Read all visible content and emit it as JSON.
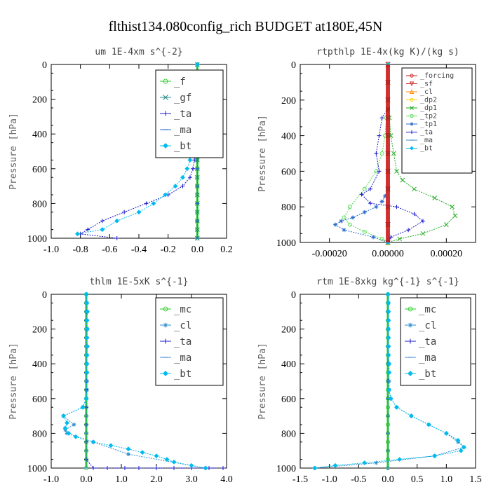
{
  "figure": {
    "title": "flthist134.080config_rich  BUDGET at180E,45N"
  },
  "chart_data": [
    {
      "type": "line",
      "title": "um  1E-4xm s^{-2}",
      "ylabel": "Pressure [hPa]",
      "xlim": [
        -1.0,
        0.2
      ],
      "ylim": [
        1000,
        0
      ],
      "xticks": [
        "-1.0",
        "-0.8",
        "-0.6",
        "-0.4",
        "-0.2",
        "0.0",
        "0.2"
      ],
      "yticks": [
        "0",
        "200",
        "400",
        "600",
        "800",
        "1000"
      ],
      "legend_position": "top-right",
      "series": [
        {
          "name": "_f",
          "color": "#22cc22",
          "marker": "circle",
          "x": [
            0,
            0,
            0,
            0,
            0,
            0,
            0,
            0,
            0,
            0,
            0,
            0,
            0,
            0,
            0,
            0,
            0,
            0,
            0,
            0,
            0
          ],
          "y": [
            0,
            50,
            100,
            150,
            200,
            250,
            300,
            350,
            400,
            450,
            500,
            550,
            600,
            650,
            700,
            750,
            800,
            850,
            900,
            950,
            1000
          ]
        },
        {
          "name": "_gf",
          "color": "#2a8a8a",
          "marker": "x",
          "x": [
            0,
            0,
            0,
            0,
            0,
            0,
            0,
            0,
            0,
            0,
            0,
            0,
            0,
            0,
            0,
            0,
            0,
            0,
            0,
            0,
            0
          ],
          "y": [
            0,
            50,
            100,
            150,
            200,
            250,
            300,
            350,
            400,
            450,
            500,
            550,
            600,
            650,
            700,
            750,
            800,
            850,
            900,
            950,
            1000
          ]
        },
        {
          "name": "_ta",
          "color": "#1a1acc",
          "marker": "plus",
          "x": [
            0,
            0,
            0,
            0,
            -0.01,
            -0.01,
            -0.01,
            -0.01,
            0,
            -0.01,
            -0.02,
            -0.03,
            -0.05,
            -0.1,
            -0.2,
            -0.35,
            -0.5,
            -0.65,
            -0.75,
            -0.8,
            -0.55
          ],
          "y": [
            0,
            100,
            200,
            220,
            250,
            300,
            350,
            400,
            450,
            500,
            550,
            600,
            650,
            700,
            750,
            800,
            850,
            900,
            950,
            975,
            1000
          ]
        },
        {
          "name": "_ma",
          "color": "#2a6acc",
          "marker": "dash",
          "x": [
            0,
            0,
            0,
            0,
            0,
            0,
            0,
            0,
            0,
            0,
            0
          ],
          "y": [
            0,
            100,
            200,
            300,
            400,
            500,
            600,
            700,
            800,
            900,
            1000
          ]
        },
        {
          "name": "_bt",
          "color": "#00bbee",
          "marker": "diamond",
          "x": [
            0,
            0,
            -0.01,
            -0.01,
            -0.01,
            -0.01,
            -0.01,
            -0.01,
            -0.02,
            -0.03,
            -0.04,
            -0.05,
            -0.07,
            -0.1,
            -0.15,
            -0.22,
            -0.3,
            -0.4,
            -0.55,
            -0.65,
            -0.82
          ],
          "y": [
            0,
            50,
            100,
            150,
            200,
            250,
            300,
            350,
            400,
            450,
            500,
            550,
            600,
            650,
            700,
            750,
            800,
            850,
            900,
            950,
            975
          ]
        }
      ]
    },
    {
      "type": "line",
      "title": "rtpthlp  1E-4x(kg K)/(kg s)",
      "ylabel": "Pressure [hPa]",
      "xlim": [
        -0.0003,
        0.0003
      ],
      "ylim": [
        1000,
        0
      ],
      "xticks": [
        "-0.00020",
        "0.00000",
        "0.00020"
      ],
      "yticks": [
        "0",
        "200",
        "400",
        "600",
        "800",
        "1000"
      ],
      "legend_position": "top-right",
      "series": [
        {
          "name": "_forcing",
          "color": "#cc2222",
          "marker": "circle",
          "x": [
            0,
            0,
            0,
            0,
            0,
            0,
            0,
            0,
            0,
            0,
            0
          ],
          "y": [
            0,
            100,
            200,
            300,
            400,
            500,
            600,
            700,
            800,
            900,
            1000
          ]
        },
        {
          "name": "_sf",
          "color": "#cc2222",
          "marker": "triangle-down",
          "x": [
            0,
            0,
            0,
            0,
            0,
            0,
            0,
            0,
            0,
            0,
            0
          ],
          "y": [
            0,
            100,
            200,
            300,
            400,
            500,
            600,
            700,
            800,
            900,
            1000
          ]
        },
        {
          "name": "_cl",
          "color": "#ff8800",
          "marker": "triangle-up",
          "x": [
            0,
            0,
            0,
            0,
            0,
            0,
            0,
            0,
            0,
            0,
            0
          ],
          "y": [
            0,
            100,
            200,
            300,
            400,
            500,
            600,
            700,
            800,
            900,
            1000
          ]
        },
        {
          "name": "_dp2",
          "color": "#ffcc00",
          "marker": "circle",
          "x": [
            0,
            0,
            0,
            0,
            0,
            0,
            0,
            0,
            0,
            0,
            0
          ],
          "y": [
            0,
            100,
            200,
            300,
            400,
            500,
            600,
            700,
            800,
            900,
            1000
          ]
        },
        {
          "name": "_dp1",
          "color": "#22aa22",
          "marker": "x",
          "x": [
            0,
            5e-06,
            1e-05,
            2e-05,
            3e-05,
            5e-05,
            9e-05,
            0.00016,
            0.00022,
            0.00023,
            0.0002,
            0.00012,
            4e-05,
            0.0
          ],
          "y": [
            250,
            300,
            400,
            500,
            600,
            650,
            700,
            750,
            800,
            850,
            900,
            950,
            980,
            1000
          ]
        },
        {
          "name": "_tp2",
          "color": "#55dd55",
          "marker": "circle",
          "x": [
            0,
            -5e-06,
            -1e-05,
            -2e-05,
            -4e-05,
            -8e-05,
            -0.00013,
            -0.00015,
            -0.00013,
            -8e-05,
            -2e-05,
            0
          ],
          "y": [
            250,
            300,
            400,
            500,
            600,
            700,
            800,
            860,
            900,
            940,
            980,
            1000
          ]
        },
        {
          "name": "_tp1",
          "color": "#2a6acc",
          "marker": "asterisk",
          "x": [
            0,
            -1e-05,
            -2e-05,
            -4e-05,
            -8e-05,
            -0.00012,
            -0.00016,
            -0.00018,
            -0.00015,
            -5e-05,
            0
          ],
          "y": [
            700,
            740,
            770,
            800,
            830,
            860,
            880,
            900,
            930,
            970,
            1000
          ]
        },
        {
          "name": "_ta",
          "color": "#1a1acc",
          "marker": "plus",
          "x": [
            0,
            -2e-05,
            -3e-05,
            -4e-05,
            -3e-05,
            -6e-05,
            -9e-05,
            -6e-05,
            3e-05,
            9e-05,
            0.00012,
            7e-05,
            1e-05,
            0
          ],
          "y": [
            250,
            300,
            400,
            500,
            600,
            700,
            730,
            780,
            800,
            840,
            880,
            930,
            970,
            1000
          ]
        },
        {
          "name": "_ma",
          "color": "#4488cc",
          "marker": "dash",
          "x": [
            0,
            0,
            0,
            0,
            0,
            0,
            0,
            0,
            0,
            0,
            0
          ],
          "y": [
            0,
            100,
            200,
            300,
            400,
            500,
            600,
            700,
            800,
            900,
            1000
          ]
        },
        {
          "name": "_bt",
          "color": "#00bbee",
          "marker": "diamond",
          "x": [
            0,
            0,
            0,
            0,
            0,
            0,
            0,
            0,
            0,
            0,
            0
          ],
          "y": [
            0,
            100,
            200,
            300,
            400,
            500,
            600,
            700,
            800,
            900,
            1000
          ]
        }
      ]
    },
    {
      "type": "line",
      "title": "thlm  1E-5xK s^{-1}",
      "ylabel": "Pressure [hPa]",
      "xlim": [
        -1.0,
        4.0
      ],
      "ylim": [
        1000,
        0
      ],
      "xticks": [
        "-1.0",
        "0.0",
        "1.0",
        "2.0",
        "3.0",
        "4.0"
      ],
      "yticks": [
        "0",
        "200",
        "400",
        "600",
        "800",
        "1000"
      ],
      "legend_position": "top-right",
      "series": [
        {
          "name": "_mc",
          "color": "#22cc22",
          "marker": "circle",
          "x": [
            0,
            0,
            0,
            0,
            0,
            0,
            0,
            0,
            0,
            0,
            0,
            0,
            0,
            0,
            0,
            0,
            0,
            0,
            0,
            0,
            0
          ],
          "y": [
            0,
            50,
            100,
            150,
            200,
            250,
            300,
            350,
            400,
            450,
            500,
            550,
            600,
            650,
            700,
            750,
            800,
            850,
            900,
            950,
            1000
          ]
        },
        {
          "name": "_cl",
          "color": "#2a8acc",
          "marker": "asterisk",
          "x": [
            0,
            0.02,
            0.03,
            0.02,
            0.03,
            0.02,
            0.03,
            0.02,
            0.02,
            0.02,
            0.02,
            0.02,
            0.0,
            -0.1,
            -0.65,
            -0.35,
            -0.6,
            -0.55,
            0.2,
            1.2,
            3.4
          ],
          "y": [
            0,
            50,
            100,
            150,
            200,
            250,
            300,
            350,
            400,
            450,
            500,
            550,
            600,
            650,
            700,
            750,
            780,
            800,
            850,
            920,
            1000
          ]
        },
        {
          "name": "_ta",
          "color": "#1a1acc",
          "marker": "plus",
          "x": [
            0,
            0,
            0,
            0,
            0,
            0,
            0,
            0,
            0,
            0,
            0,
            0,
            0,
            0,
            0,
            0,
            0,
            0,
            0,
            0,
            0.2,
            0.6,
            1.1,
            1.5,
            2.0,
            2.5,
            3.0,
            3.5,
            3.9
          ],
          "y": [
            0,
            50,
            100,
            150,
            200,
            250,
            300,
            350,
            400,
            450,
            500,
            550,
            600,
            650,
            700,
            750,
            800,
            850,
            900,
            950,
            1000,
            1000,
            1000,
            1000,
            1000,
            1000,
            1000,
            1000,
            1000
          ]
        },
        {
          "name": "_ma",
          "color": "#4488cc",
          "marker": "dash",
          "x": [
            0,
            0,
            0,
            0,
            0,
            0,
            0,
            0,
            0,
            0,
            0
          ],
          "y": [
            0,
            100,
            200,
            300,
            400,
            500,
            600,
            700,
            800,
            900,
            1000
          ]
        },
        {
          "name": "_bt",
          "color": "#00bbee",
          "marker": "diamond",
          "x": [
            0,
            0.02,
            0.03,
            0.02,
            0.03,
            0.02,
            0.03,
            0.02,
            0.02,
            0.02,
            0.0,
            -0.1,
            -0.65,
            -0.55,
            -0.6,
            -0.5,
            -0.3,
            0.2,
            0.7,
            1.2,
            1.6,
            2.0,
            2.3,
            2.5,
            3.0,
            3.4
          ],
          "y": [
            0,
            50,
            100,
            150,
            200,
            250,
            300,
            350,
            400,
            450,
            600,
            650,
            700,
            740,
            770,
            800,
            820,
            850,
            870,
            890,
            910,
            930,
            950,
            965,
            985,
            1000
          ]
        }
      ]
    },
    {
      "type": "line",
      "title": "rtm  1E-8xkg kg^{-1} s^{-1}",
      "ylabel": "Pressure [hPa]",
      "xlim": [
        -1.5,
        1.5
      ],
      "ylim": [
        1000,
        0
      ],
      "xticks": [
        "-1.5",
        "-1.0",
        "-0.5",
        "0.0",
        "0.5",
        "1.0",
        "1.5"
      ],
      "yticks": [
        "0",
        "200",
        "400",
        "600",
        "800",
        "1000"
      ],
      "legend_position": "top-right",
      "series": [
        {
          "name": "_mc",
          "color": "#22cc22",
          "marker": "circle",
          "x": [
            0,
            0,
            0,
            0,
            0,
            0,
            0,
            0,
            0,
            0,
            0,
            0,
            0,
            0,
            0,
            0,
            0,
            0,
            0,
            0,
            0
          ],
          "y": [
            0,
            50,
            100,
            150,
            200,
            250,
            300,
            350,
            400,
            450,
            500,
            550,
            600,
            650,
            700,
            750,
            800,
            850,
            900,
            950,
            1000
          ]
        },
        {
          "name": "_cl",
          "color": "#2a8acc",
          "marker": "asterisk",
          "x": [
            0,
            0.01,
            0.01,
            0.01,
            0.01,
            0.01,
            0.01,
            0.01,
            0.02,
            0.02,
            0.02,
            0.02,
            0.05,
            0.15,
            0.4,
            0.7,
            1.0,
            1.2,
            1.3,
            0.8,
            -0.2,
            -1.25
          ],
          "y": [
            0,
            50,
            100,
            150,
            200,
            250,
            300,
            350,
            400,
            450,
            500,
            550,
            600,
            650,
            700,
            750,
            800,
            850,
            880,
            930,
            970,
            1000
          ]
        },
        {
          "name": "_ta",
          "color": "#1a1acc",
          "marker": "plus",
          "x": [
            0,
            0,
            0,
            0,
            0,
            0,
            0,
            0,
            0,
            0,
            0
          ],
          "y": [
            0,
            100,
            200,
            300,
            400,
            500,
            600,
            700,
            800,
            900,
            1000
          ]
        },
        {
          "name": "_ma",
          "color": "#4488cc",
          "marker": "dash",
          "x": [
            0,
            0,
            0,
            0,
            0,
            0,
            0,
            0,
            0,
            0,
            0
          ],
          "y": [
            0,
            100,
            200,
            300,
            400,
            500,
            600,
            700,
            800,
            900,
            1000
          ]
        },
        {
          "name": "_bt",
          "color": "#00bbee",
          "marker": "diamond",
          "x": [
            0,
            0.01,
            0.01,
            0.01,
            0.01,
            0.01,
            0.01,
            0.01,
            0.02,
            0.02,
            0.02,
            0.05,
            0.15,
            0.4,
            0.7,
            1.0,
            1.2,
            1.3,
            1.25,
            0.8,
            0.2,
            -0.4,
            -0.9,
            -1.25
          ],
          "y": [
            0,
            50,
            100,
            150,
            200,
            250,
            300,
            350,
            400,
            450,
            550,
            600,
            650,
            700,
            750,
            800,
            840,
            880,
            900,
            930,
            950,
            970,
            985,
            1000
          ]
        }
      ]
    }
  ]
}
